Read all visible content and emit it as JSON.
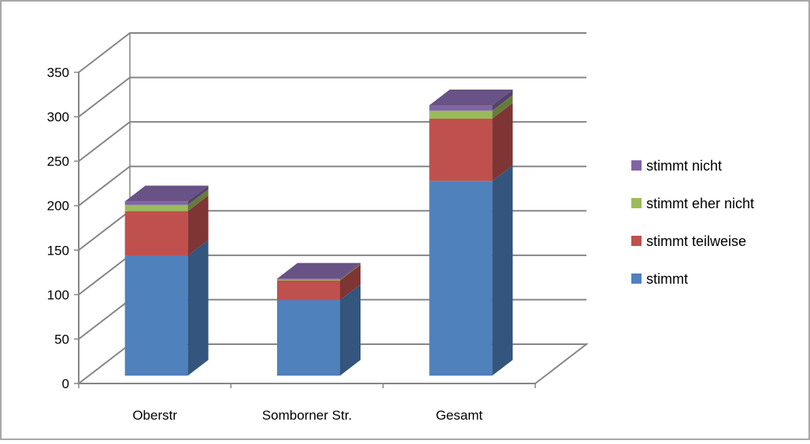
{
  "chart_data": {
    "type": "bar",
    "subtype": "stacked-3d",
    "title": "",
    "xlabel": "",
    "ylabel": "",
    "categories": [
      "Oberstr",
      "Somborner Str.",
      "Gesamt"
    ],
    "ylim": [
      0,
      350
    ],
    "yticks": [
      "0",
      "50",
      "100",
      "150",
      "200",
      "250",
      "300",
      "350"
    ],
    "grid": true,
    "legend_position": "right",
    "series": [
      {
        "name": "stimmt",
        "color": "#4F81BD",
        "values": [
          135,
          85,
          219
        ]
      },
      {
        "name": "stimmt teilweise",
        "color": "#C0504D",
        "values": [
          50,
          22,
          70
        ]
      },
      {
        "name": "stimmt eher nicht",
        "color": "#9BBB59",
        "values": [
          7,
          1,
          9
        ]
      },
      {
        "name": "stimmt nicht",
        "color": "#8064A2",
        "values": [
          4,
          1,
          6
        ]
      }
    ],
    "legend_order": [
      "stimmt nicht",
      "stimmt eher nicht",
      "stimmt teilweise",
      "stimmt"
    ]
  }
}
